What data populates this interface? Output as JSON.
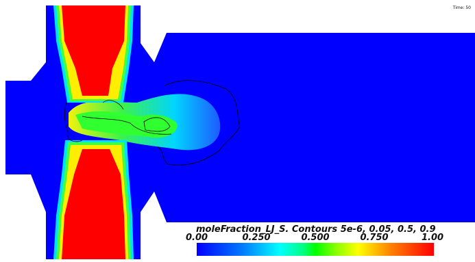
{
  "time_label": "Time: 50",
  "legend": {
    "title": "moleFraction_LJ_S.   Contours 5e-6, 0.05, 0.5, 0.9",
    "ticks": [
      "0.00",
      "0.250",
      "0.500",
      "0.750",
      "1.00"
    ],
    "colormap": [
      "#0000ff",
      "#0080ff",
      "#00ffff",
      "#00ff80",
      "#00ff00",
      "#80ff00",
      "#ffff00",
      "#ff8000",
      "#ff0000"
    ]
  }
}
